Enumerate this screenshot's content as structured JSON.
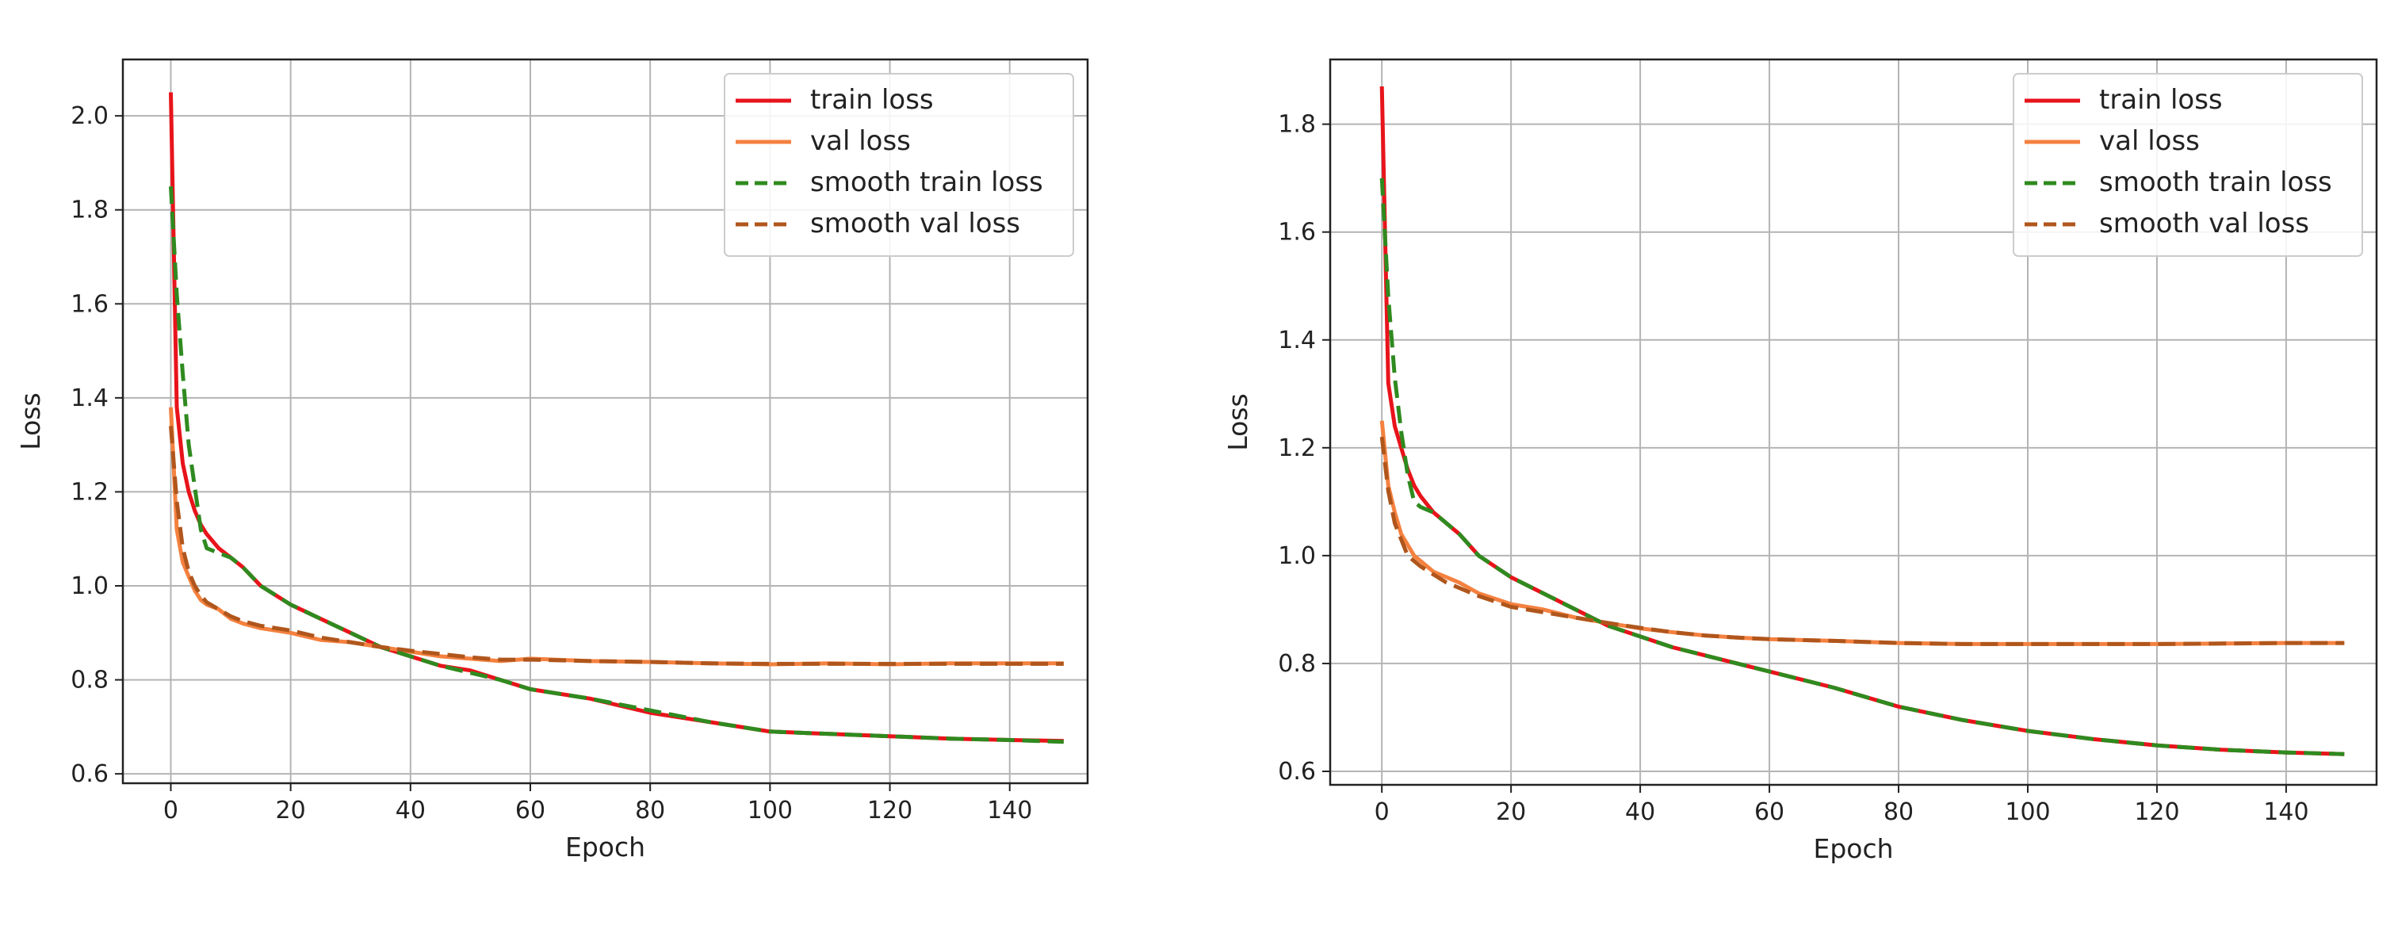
{
  "chart_data": [
    {
      "type": "line",
      "xlabel": "Epoch",
      "ylabel": "Loss",
      "xlim": [
        -8,
        153
      ],
      "ylim": [
        0.58,
        2.12
      ],
      "xticks": [
        0,
        20,
        40,
        60,
        80,
        100,
        120,
        140
      ],
      "yticks": [
        0.6,
        0.8,
        1.0,
        1.2,
        1.4,
        1.6,
        1.8,
        2.0
      ],
      "ytick_labels": [
        "0.6",
        "0.8",
        "1.0",
        "1.2",
        "1.4",
        "1.6",
        "1.8",
        "2.0"
      ],
      "grid": true,
      "legend_position": "top-right",
      "x": [
        0,
        1,
        2,
        3,
        4,
        5,
        6,
        8,
        10,
        12,
        15,
        20,
        25,
        30,
        35,
        40,
        45,
        50,
        55,
        60,
        70,
        80,
        90,
        100,
        110,
        120,
        130,
        140,
        149
      ],
      "series": [
        {
          "name": "train loss",
          "color": "#e8141b",
          "dash": "solid",
          "values": [
            2.05,
            1.38,
            1.26,
            1.2,
            1.16,
            1.13,
            1.11,
            1.08,
            1.06,
            1.04,
            1.0,
            0.96,
            0.93,
            0.9,
            0.87,
            0.85,
            0.83,
            0.82,
            0.8,
            0.78,
            0.76,
            0.73,
            0.71,
            0.69,
            0.685,
            0.68,
            0.675,
            0.672,
            0.67
          ]
        },
        {
          "name": "val loss",
          "color": "#f4813f",
          "dash": "solid",
          "values": [
            1.38,
            1.12,
            1.05,
            1.02,
            0.99,
            0.97,
            0.96,
            0.95,
            0.93,
            0.92,
            0.91,
            0.9,
            0.885,
            0.88,
            0.87,
            0.86,
            0.85,
            0.845,
            0.84,
            0.845,
            0.84,
            0.838,
            0.835,
            0.833,
            0.835,
            0.833,
            0.835,
            0.835,
            0.835
          ]
        },
        {
          "name": "smooth train loss",
          "color": "#2f8a1f",
          "dash": "dashed",
          "values": [
            1.85,
            1.62,
            1.45,
            1.3,
            1.21,
            1.12,
            1.08,
            1.07,
            1.06,
            1.04,
            1.0,
            0.96,
            0.93,
            0.9,
            0.87,
            0.85,
            0.83,
            0.815,
            0.8,
            0.78,
            0.76,
            0.735,
            0.71,
            0.69,
            0.685,
            0.68,
            0.675,
            0.672,
            0.668
          ]
        },
        {
          "name": "smooth val loss",
          "color": "#b0561c",
          "dash": "dashed",
          "values": [
            1.34,
            1.18,
            1.08,
            1.03,
            1.0,
            0.98,
            0.965,
            0.95,
            0.935,
            0.925,
            0.915,
            0.905,
            0.89,
            0.88,
            0.87,
            0.862,
            0.855,
            0.848,
            0.843,
            0.843,
            0.84,
            0.838,
            0.835,
            0.834,
            0.834,
            0.834,
            0.834,
            0.834,
            0.834
          ]
        }
      ]
    },
    {
      "type": "line",
      "xlabel": "Epoch",
      "ylabel": "Loss",
      "xlim": [
        -8,
        154
      ],
      "ylim": [
        0.575,
        1.92
      ],
      "xticks": [
        0,
        20,
        40,
        60,
        80,
        100,
        120,
        140
      ],
      "yticks": [
        0.6,
        0.8,
        1.0,
        1.2,
        1.4,
        1.6,
        1.8
      ],
      "ytick_labels": [
        "0.6",
        "0.8",
        "1.0",
        "1.2",
        "1.4",
        "1.6",
        "1.8"
      ],
      "grid": true,
      "legend_position": "top-right",
      "x": [
        0,
        1,
        2,
        3,
        4,
        5,
        6,
        8,
        10,
        12,
        15,
        20,
        25,
        30,
        35,
        40,
        45,
        50,
        55,
        60,
        70,
        80,
        90,
        100,
        110,
        120,
        130,
        140,
        149
      ],
      "series": [
        {
          "name": "train loss",
          "color": "#e8141b",
          "dash": "solid",
          "values": [
            1.87,
            1.32,
            1.24,
            1.2,
            1.16,
            1.13,
            1.11,
            1.08,
            1.06,
            1.04,
            1.0,
            0.96,
            0.93,
            0.9,
            0.87,
            0.85,
            0.83,
            0.815,
            0.8,
            0.785,
            0.755,
            0.72,
            0.695,
            0.675,
            0.66,
            0.648,
            0.64,
            0.635,
            0.632
          ]
        },
        {
          "name": "val loss",
          "color": "#f4813f",
          "dash": "solid",
          "values": [
            1.25,
            1.13,
            1.08,
            1.04,
            1.02,
            1.0,
            0.99,
            0.97,
            0.96,
            0.95,
            0.93,
            0.91,
            0.9,
            0.885,
            0.875,
            0.865,
            0.858,
            0.852,
            0.848,
            0.845,
            0.842,
            0.838,
            0.836,
            0.836,
            0.836,
            0.836,
            0.837,
            0.838,
            0.838
          ]
        },
        {
          "name": "smooth train loss",
          "color": "#2f8a1f",
          "dash": "dashed",
          "values": [
            1.7,
            1.48,
            1.33,
            1.23,
            1.15,
            1.1,
            1.09,
            1.08,
            1.06,
            1.04,
            1.0,
            0.96,
            0.93,
            0.9,
            0.87,
            0.85,
            0.83,
            0.815,
            0.8,
            0.785,
            0.755,
            0.72,
            0.695,
            0.675,
            0.66,
            0.648,
            0.64,
            0.635,
            0.632
          ]
        },
        {
          "name": "smooth val loss",
          "color": "#b0561c",
          "dash": "dashed",
          "values": [
            1.22,
            1.12,
            1.06,
            1.03,
            1.0,
            0.99,
            0.98,
            0.965,
            0.95,
            0.94,
            0.925,
            0.905,
            0.895,
            0.885,
            0.875,
            0.866,
            0.858,
            0.852,
            0.848,
            0.845,
            0.842,
            0.838,
            0.836,
            0.836,
            0.836,
            0.836,
            0.837,
            0.838,
            0.838
          ]
        }
      ]
    }
  ]
}
